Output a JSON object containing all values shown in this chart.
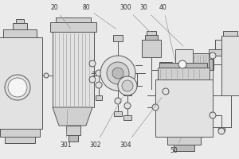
{
  "bg_color": "#ebebeb",
  "line_color": "#999999",
  "dark_line": "#555555",
  "fill_light": "#e2e2e2",
  "fill_mid": "#d0d0d0",
  "fill_dark": "#bbbbbb",
  "white": "#f5f5f5",
  "figsize": [
    3.0,
    2.0
  ],
  "dpi": 100
}
